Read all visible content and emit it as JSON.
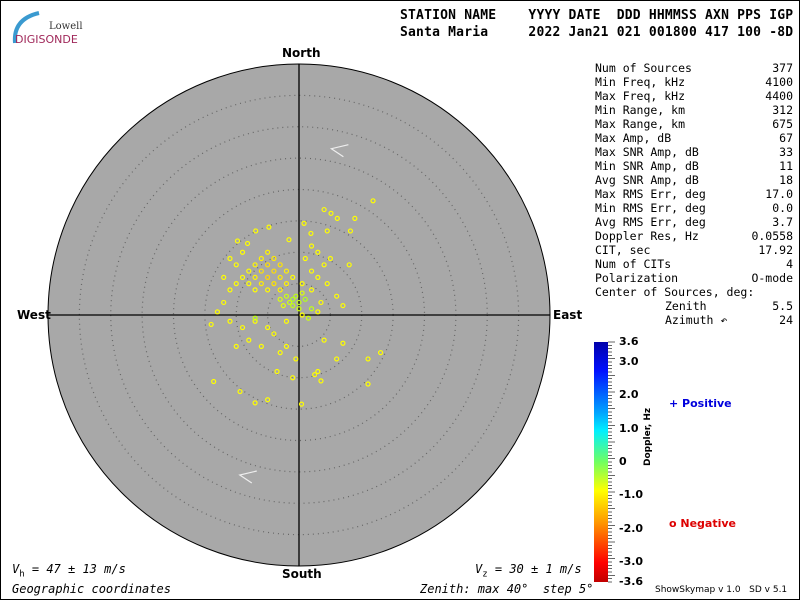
{
  "logo": {
    "line1": "Lowell",
    "line2": "DIGISONDE"
  },
  "header": {
    "labels": "STATION NAME    YYYY DATE  DDD HHMMSS AXN PPS IGP",
    "values": "Santa Maria     2022 Jan21 021 001800 417 100 -8D"
  },
  "directions": {
    "north": "North",
    "south": "South",
    "east": "East",
    "west": "West"
  },
  "stats": [
    {
      "label": "Num of Sources",
      "value": "377"
    },
    {
      "label": "Min Freq, kHz",
      "value": "4100"
    },
    {
      "label": "Max Freq, kHz",
      "value": "4400"
    },
    {
      "label": "Min Range, km",
      "value": "312"
    },
    {
      "label": "Max Range, km",
      "value": "675"
    },
    {
      "label": "Max Amp, dB",
      "value": "67"
    },
    {
      "label": "Max SNR Amp, dB",
      "value": "33"
    },
    {
      "label": "Min SNR Amp, dB",
      "value": "11"
    },
    {
      "label": "Avg SNR Amp, dB",
      "value": "18"
    },
    {
      "label": "Max RMS Err, deg",
      "value": "17.0"
    },
    {
      "label": "Min RMS Err, deg",
      "value": "0.0"
    },
    {
      "label": "Avg RMS Err, deg",
      "value": "3.7"
    },
    {
      "label": "Doppler Res, Hz",
      "value": "0.0558"
    },
    {
      "label": "CIT, sec",
      "value": "17.92"
    },
    {
      "label": "Num of CITs",
      "value": "4"
    },
    {
      "label": "Polarization",
      "value": "O-mode"
    }
  ],
  "center": {
    "title": "Center of Sources, deg:",
    "zenith_label": "Zenith",
    "zenith": "5.5",
    "azimuth_label": "Azimuth ↶",
    "azimuth": "24"
  },
  "colorbar": {
    "title": "Doppler, Hz",
    "range": [
      -3.6,
      3.6
    ],
    "ticks": [
      "3.6",
      "3.0",
      "2.0",
      "1.0",
      "0",
      "-1.0",
      "-2.0",
      "-3.0",
      "-3.6"
    ]
  },
  "legend": {
    "positive": "Positive",
    "negative": "Negative",
    "positive_color": "#0000dd",
    "negative_color": "#dd0000"
  },
  "footer": {
    "vh": "V",
    "vh_sub": "h",
    "vh_val": " = 47 ± 13 m/s",
    "vz": "V",
    "vz_sub": "z",
    "vz_val": " = 30 ± 1 m/s",
    "coords": "Geographic coordinates",
    "zenith": "Zenith: max 40°  step 5°",
    "version": "ShowSkymap v 1.0   SD v 5.1"
  },
  "chart_data": {
    "type": "scatter",
    "note_axes": "east/north zenith-angle components in degrees; polar sky map",
    "zenith_max": 40,
    "zenith_step": 5,
    "background": "#a8a8a8",
    "velocity_arrows": [
      {
        "east": 5.8,
        "north": 26.5
      },
      {
        "east": -8.8,
        "north": -25.5
      }
    ],
    "points": [
      [
        11.8,
        18.2,
        -1
      ],
      [
        4,
        16.8,
        -1
      ],
      [
        5.1,
        16.2,
        -1
      ],
      [
        6.1,
        15.4,
        -1
      ],
      [
        8.9,
        15.4,
        -1
      ],
      [
        8.2,
        13.4,
        -1
      ],
      [
        4.5,
        13.4,
        -1
      ],
      [
        1.9,
        13,
        -1
      ],
      [
        0.8,
        14.6,
        -1
      ],
      [
        -4.8,
        14,
        -1
      ],
      [
        -6.9,
        13.4,
        -1
      ],
      [
        -9.8,
        11.8,
        -1
      ],
      [
        -8.2,
        11.4,
        -1
      ],
      [
        -1.6,
        12,
        -1
      ],
      [
        -5,
        10,
        -1.2
      ],
      [
        -4,
        9,
        -1.3
      ],
      [
        -6,
        9,
        -1.2
      ],
      [
        -3,
        8,
        -1.4
      ],
      [
        -5,
        8,
        -1.5
      ],
      [
        -7,
        8,
        -1.1
      ],
      [
        -2,
        7,
        -1.2
      ],
      [
        -4,
        7,
        -1.5
      ],
      [
        -6,
        7,
        -1.4
      ],
      [
        -8,
        7,
        -1
      ],
      [
        -3,
        6,
        -1.3
      ],
      [
        -5,
        6,
        -1.6
      ],
      [
        -7,
        6,
        -1.2
      ],
      [
        -1,
        6,
        -1
      ],
      [
        -9,
        6,
        -1
      ],
      [
        -2,
        5,
        -1.2
      ],
      [
        -4,
        5,
        -1.4
      ],
      [
        -6,
        5,
        -1.3
      ],
      [
        -8,
        5,
        -1
      ],
      [
        -10,
        5,
        -1
      ],
      [
        -3,
        4,
        -1.2
      ],
      [
        -5,
        4,
        -1.1
      ],
      [
        -7,
        4,
        -1
      ],
      [
        -11,
        4,
        -1
      ],
      [
        -12,
        6,
        -1
      ],
      [
        -10,
        8,
        -1
      ],
      [
        -11,
        9,
        -1
      ],
      [
        -9,
        10,
        -1
      ],
      [
        -0.5,
        3,
        -0.5
      ],
      [
        -1,
        2.5,
        -0.4
      ],
      [
        -1.5,
        2,
        -0.6
      ],
      [
        0,
        2,
        -0.5
      ],
      [
        -2,
        3,
        -0.6
      ],
      [
        0.5,
        3.5,
        -0.7
      ],
      [
        -1,
        1.5,
        -0.5
      ],
      [
        -2.5,
        1.5,
        -0.8
      ],
      [
        0,
        1,
        -0.6
      ],
      [
        1,
        2.5,
        -0.4
      ],
      [
        -3,
        2.5,
        -0.7
      ],
      [
        2,
        1,
        -0.5
      ],
      [
        1.5,
        -0.5,
        -0.6
      ],
      [
        2,
        7,
        -1
      ],
      [
        3,
        6,
        -1
      ],
      [
        4,
        8,
        -1
      ],
      [
        1,
        9,
        -1
      ],
      [
        3,
        10,
        -1
      ],
      [
        5,
        9,
        -1
      ],
      [
        2,
        11,
        -1
      ],
      [
        4.5,
        5,
        -1
      ],
      [
        6,
        3,
        -1
      ],
      [
        7,
        1.5,
        -1
      ],
      [
        3.5,
        2,
        -1
      ],
      [
        8,
        8,
        -1
      ],
      [
        2,
        4,
        -1
      ],
      [
        0.5,
        5,
        -1
      ],
      [
        -12,
        2,
        -1
      ],
      [
        -13,
        0.5,
        -1
      ],
      [
        -11,
        -1,
        -1
      ],
      [
        -9,
        -2,
        -1
      ],
      [
        -7,
        -1,
        -1
      ],
      [
        -5,
        -2,
        -1
      ],
      [
        -8,
        -4,
        -1
      ],
      [
        -6,
        -5,
        -1
      ],
      [
        -4,
        -3,
        -1
      ],
      [
        -2,
        -1,
        -1
      ],
      [
        -3,
        -6,
        -1
      ],
      [
        -10,
        -5,
        -1
      ],
      [
        -14,
        -1.5,
        -1
      ],
      [
        -7,
        -0.5,
        -0.5
      ],
      [
        4,
        -4,
        -1
      ],
      [
        7,
        -4.5,
        -1
      ],
      [
        6,
        -7,
        -1
      ],
      [
        11,
        -7,
        -1
      ],
      [
        13,
        -6,
        -1
      ],
      [
        3,
        -9,
        -1
      ],
      [
        2.5,
        -9.5,
        -1
      ],
      [
        3.5,
        -10.5,
        -1
      ],
      [
        11,
        -11,
        -1
      ],
      [
        0.5,
        0,
        -1
      ],
      [
        3,
        0.5,
        -1
      ],
      [
        -1,
        -10,
        -1
      ],
      [
        -13.6,
        -10.6,
        -1
      ],
      [
        -9.4,
        -12.2,
        -1
      ],
      [
        -7,
        -14,
        -1
      ],
      [
        -5,
        -13.5,
        -1
      ],
      [
        0.4,
        -14.2,
        -1
      ],
      [
        -3.5,
        -9,
        -1
      ],
      [
        -0.5,
        -7,
        -1
      ],
      [
        -2,
        -5,
        -1
      ]
    ]
  }
}
